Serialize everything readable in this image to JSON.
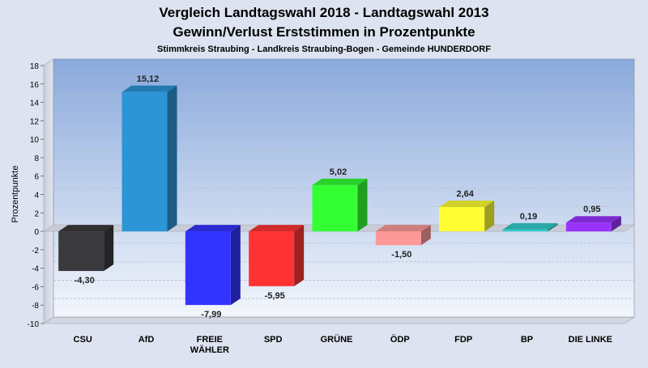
{
  "chart_data": {
    "type": "bar",
    "title": "Vergleich Landtagswahl 2018 - Landtagswahl 2013",
    "subtitle": "Gewinn/Verlust Erststimmen in Prozentpunkte",
    "caption": "Stimmkreis Straubing - Landkreis Straubing-Bogen - Gemeinde HUNDERDORF",
    "ylabel": "Prozentpunkte",
    "xlabel": "",
    "ylim": [
      -10,
      18
    ],
    "yticks": [
      -10,
      -8,
      -6,
      -4,
      -2,
      0,
      2,
      4,
      6,
      8,
      10,
      12,
      14,
      16,
      18
    ],
    "grid": true,
    "categories": [
      "CSU",
      "AfD",
      "FREIE WÄHLER",
      "SPD",
      "GRÜNE",
      "ÖDP",
      "FDP",
      "BP",
      "DIE LINKE"
    ],
    "category_lines": [
      [
        "CSU"
      ],
      [
        "AfD"
      ],
      [
        "FREIE",
        "WÄHLER"
      ],
      [
        "SPD"
      ],
      [
        "GRÜNE"
      ],
      [
        "ÖDP"
      ],
      [
        "FDP"
      ],
      [
        "BP"
      ],
      [
        "DIE LINKE"
      ]
    ],
    "values": [
      -4.3,
      15.12,
      -7.99,
      -5.95,
      5.02,
      -1.5,
      2.64,
      0.19,
      0.95
    ],
    "value_labels": [
      "-4,30",
      "15,12",
      "-7,99",
      "-5,95",
      "5,02",
      "-1,50",
      "2,64",
      "0,19",
      "0,95"
    ],
    "colors": [
      "#3a3a3e",
      "#2b95d6",
      "#3333ff",
      "#ff3333",
      "#33ff33",
      "#ff9999",
      "#ffff33",
      "#33cccc",
      "#9933ff"
    ]
  }
}
